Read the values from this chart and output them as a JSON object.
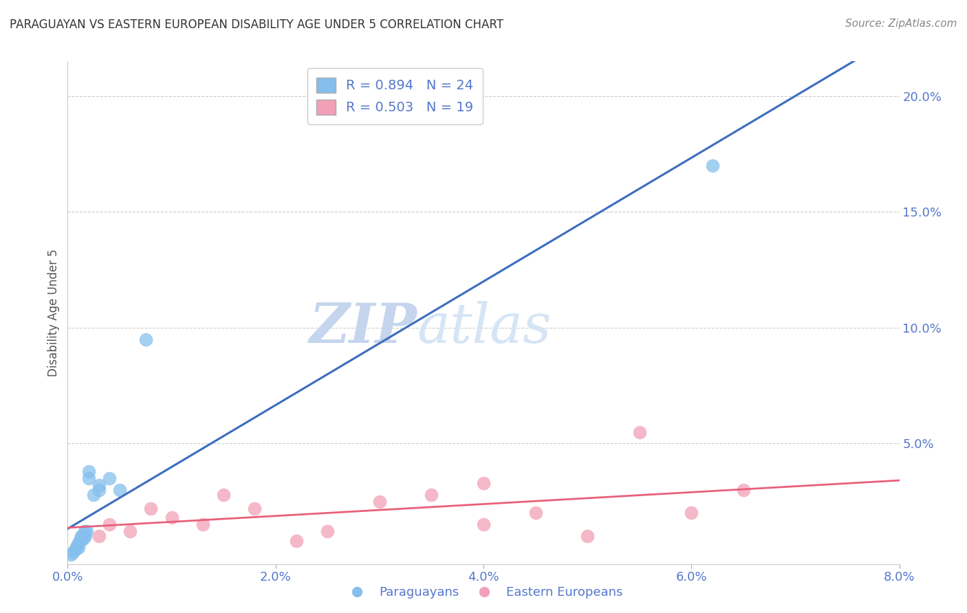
{
  "title": "PARAGUAYAN VS EASTERN EUROPEAN DISABILITY AGE UNDER 5 CORRELATION CHART",
  "source": "Source: ZipAtlas.com",
  "ylabel": "Disability Age Under 5",
  "xlabel_ticks": [
    "0.0%",
    "2.0%",
    "4.0%",
    "6.0%",
    "8.0%"
  ],
  "xlabel_vals": [
    0.0,
    0.02,
    0.04,
    0.06,
    0.08
  ],
  "ylabel_ticks_right": [
    "5.0%",
    "10.0%",
    "15.0%",
    "20.0%"
  ],
  "ylabel_vals_right": [
    0.05,
    0.1,
    0.15,
    0.2
  ],
  "xlim": [
    0.0,
    0.08
  ],
  "ylim": [
    -0.002,
    0.215
  ],
  "blue_R": 0.894,
  "blue_N": 24,
  "pink_R": 0.503,
  "pink_N": 19,
  "blue_color": "#85bfed",
  "pink_color": "#f2a0b8",
  "blue_line_color": "#3b6cbf",
  "pink_line_color": "#e8607a",
  "axis_tick_color": "#5577cc",
  "watermark_zip_color": "#ccd8f0",
  "watermark_atlas_color": "#d8e4f5",
  "background_color": "#ffffff",
  "paraguayan_x": [
    0.0003,
    0.0005,
    0.0007,
    0.0008,
    0.0009,
    0.001,
    0.001,
    0.0012,
    0.0012,
    0.0013,
    0.0015,
    0.0015,
    0.0016,
    0.0017,
    0.0018,
    0.002,
    0.002,
    0.0025,
    0.003,
    0.003,
    0.004,
    0.005,
    0.0075,
    0.062
  ],
  "paraguayan_y": [
    0.002,
    0.003,
    0.004,
    0.005,
    0.006,
    0.005,
    0.007,
    0.008,
    0.009,
    0.01,
    0.009,
    0.01,
    0.012,
    0.01,
    0.012,
    0.035,
    0.038,
    0.028,
    0.03,
    0.032,
    0.035,
    0.03,
    0.095,
    0.17
  ],
  "eastern_x": [
    0.003,
    0.004,
    0.006,
    0.008,
    0.01,
    0.013,
    0.015,
    0.018,
    0.022,
    0.025,
    0.03,
    0.035,
    0.04,
    0.04,
    0.045,
    0.05,
    0.055,
    0.06,
    0.065
  ],
  "eastern_y": [
    0.01,
    0.015,
    0.012,
    0.022,
    0.018,
    0.015,
    0.028,
    0.022,
    0.008,
    0.012,
    0.025,
    0.028,
    0.015,
    0.033,
    0.02,
    0.01,
    0.055,
    0.02,
    0.03
  ]
}
